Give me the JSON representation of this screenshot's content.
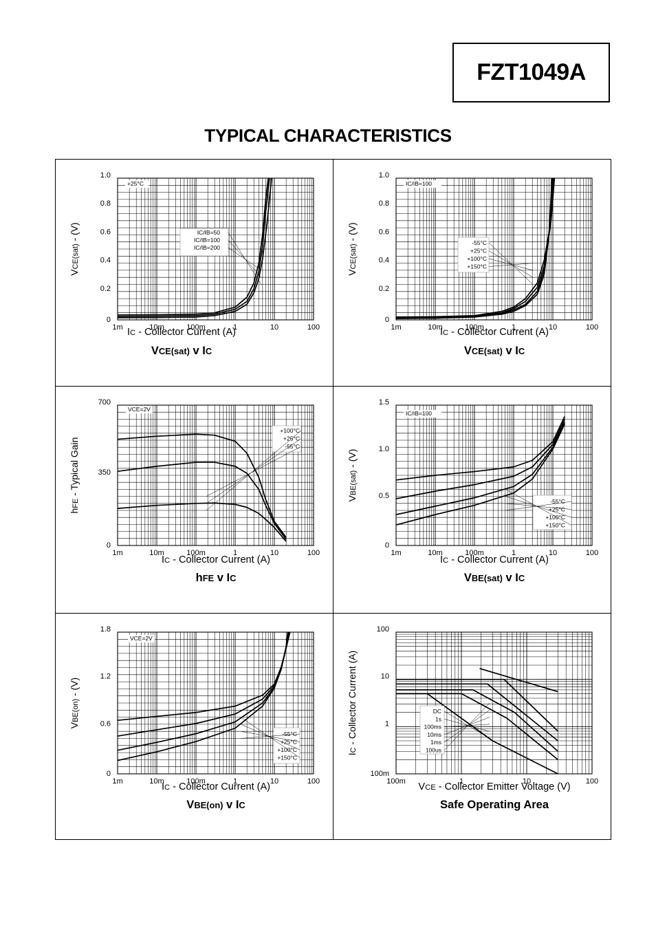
{
  "header": {
    "part_number": "FZT1049A",
    "heading": "TYPICAL CHARACTERISTICS"
  },
  "chart_data": [
    {
      "id": "vcesat",
      "type": "line",
      "title": "VCE(sat) v IC",
      "xlabel": "IC - Collector Current (A)",
      "ylabel": "VCE(sat) - (V)",
      "xscale": "log",
      "xlim": [
        0.001,
        100
      ],
      "xticks": [
        "1m",
        "10m",
        "100m",
        "1",
        "10",
        "100"
      ],
      "yscale": "linear",
      "ylim": [
        0,
        1.0
      ],
      "yticks": [
        "0",
        "0.2",
        "0.4",
        "0.6",
        "0.8",
        "1.0"
      ],
      "grid": true,
      "condition": "+25°C",
      "legend": [
        "IC/IB=50",
        "IC/IB=100",
        "IC/IB=200"
      ],
      "series": [
        {
          "name": "IC/IB=50",
          "x": [
            0.001,
            0.01,
            0.1,
            0.3,
            1,
            2,
            3,
            4,
            5,
            6,
            7
          ],
          "y": [
            0.035,
            0.036,
            0.04,
            0.05,
            0.09,
            0.16,
            0.26,
            0.4,
            0.6,
            0.85,
            1.0
          ]
        },
        {
          "name": "IC/IB=100",
          "x": [
            0.001,
            0.01,
            0.1,
            0.3,
            1,
            2,
            3,
            4,
            5,
            6,
            7.5
          ],
          "y": [
            0.025,
            0.026,
            0.03,
            0.04,
            0.075,
            0.13,
            0.22,
            0.34,
            0.52,
            0.76,
            1.0
          ]
        },
        {
          "name": "IC/IB=200",
          "x": [
            0.001,
            0.01,
            0.1,
            0.3,
            1,
            2,
            3,
            4,
            5,
            6.5,
            8.5
          ],
          "y": [
            0.015,
            0.016,
            0.02,
            0.03,
            0.06,
            0.11,
            0.19,
            0.29,
            0.43,
            0.68,
            1.0
          ]
        }
      ]
    },
    {
      "id": "vcesat_temp",
      "type": "line",
      "title": "VCE(sat) v IC",
      "xlabel": "IC - Collector Current (A)",
      "ylabel": "VCE(sat) - (V)",
      "xscale": "log",
      "xlim": [
        0.001,
        100
      ],
      "xticks": [
        "1m",
        "10m",
        "100m",
        "1",
        "10",
        "100"
      ],
      "yscale": "linear",
      "ylim": [
        0,
        1.0
      ],
      "yticks": [
        "0",
        "0.2",
        "0.4",
        "0.6",
        "0.8",
        "1.0"
      ],
      "grid": true,
      "condition": "IC/IB=100",
      "legend": [
        "-55°C",
        "+25°C",
        "+100°C",
        "+150°C"
      ],
      "series": [
        {
          "name": "-55°C",
          "x": [
            0.001,
            0.01,
            0.1,
            0.5,
            1,
            2,
            4,
            6,
            8,
            9.5
          ],
          "y": [
            0.01,
            0.012,
            0.02,
            0.04,
            0.06,
            0.1,
            0.18,
            0.32,
            0.6,
            1.0
          ]
        },
        {
          "name": "+25°C",
          "x": [
            0.001,
            0.01,
            0.1,
            0.5,
            1,
            2,
            4,
            6,
            8,
            10
          ],
          "y": [
            0.01,
            0.012,
            0.022,
            0.045,
            0.07,
            0.11,
            0.2,
            0.35,
            0.62,
            1.0
          ]
        },
        {
          "name": "+100°C",
          "x": [
            0.001,
            0.01,
            0.1,
            0.5,
            1,
            2,
            4,
            6,
            8.5,
            10.5
          ],
          "y": [
            0.015,
            0.017,
            0.026,
            0.05,
            0.08,
            0.13,
            0.23,
            0.38,
            0.65,
            1.0
          ]
        },
        {
          "name": "+150°C",
          "x": [
            0.001,
            0.01,
            0.1,
            0.5,
            1,
            2,
            4,
            6,
            9,
            11
          ],
          "y": [
            0.02,
            0.022,
            0.03,
            0.06,
            0.09,
            0.15,
            0.26,
            0.42,
            0.7,
            1.0
          ]
        }
      ]
    },
    {
      "id": "hfe",
      "type": "line",
      "title": "hFE v IC",
      "xlabel": "IC - Collector Current (A)",
      "ylabel": "hFE - Typical Gain",
      "xscale": "log",
      "xlim": [
        0.001,
        100
      ],
      "xticks": [
        "1m",
        "10m",
        "100m",
        "1",
        "10",
        "100"
      ],
      "yscale": "linear",
      "ylim": [
        0,
        700
      ],
      "yticks": [
        "0",
        "350",
        "700"
      ],
      "grid": true,
      "condition": "VCE=2V",
      "legend": [
        "+100°C",
        "+25°C",
        "-55°C"
      ],
      "series": [
        {
          "name": "+100°C",
          "x": [
            0.001,
            0.01,
            0.1,
            0.3,
            1,
            2,
            4,
            6,
            10,
            20
          ],
          "y": [
            530,
            545,
            555,
            550,
            520,
            460,
            340,
            230,
            120,
            40
          ]
        },
        {
          "name": "+25°C",
          "x": [
            0.001,
            0.01,
            0.1,
            0.3,
            1,
            2,
            4,
            6,
            10,
            20
          ],
          "y": [
            370,
            395,
            415,
            415,
            395,
            360,
            280,
            200,
            110,
            30
          ]
        },
        {
          "name": "-55°C",
          "x": [
            0.001,
            0.01,
            0.1,
            0.3,
            1,
            2,
            4,
            6,
            10,
            20
          ],
          "y": [
            185,
            200,
            210,
            212,
            205,
            190,
            160,
            130,
            90,
            20
          ]
        }
      ]
    },
    {
      "id": "vbesat",
      "type": "line",
      "title": "VBE(sat) v IC",
      "xlabel": "IC - Collector Current (A)",
      "ylabel": "VBE(sat) - (V)",
      "xscale": "log",
      "xlim": [
        0.001,
        100
      ],
      "xticks": [
        "1m",
        "10m",
        "100m",
        "1",
        "10",
        "100"
      ],
      "yscale": "linear",
      "ylim": [
        0,
        1.5
      ],
      "yticks": [
        "0",
        "0.5",
        "1.0",
        "1.5"
      ],
      "grid": true,
      "condition": "IC/IB=100",
      "legend": [
        "-55°C",
        "+25°C",
        "+100°C",
        "+150°C"
      ],
      "series": [
        {
          "name": "-55°C",
          "x": [
            0.001,
            0.01,
            0.1,
            1,
            3,
            10,
            20
          ],
          "y": [
            0.7,
            0.75,
            0.79,
            0.84,
            0.91,
            1.11,
            1.38
          ]
        },
        {
          "name": "+25°C",
          "x": [
            0.001,
            0.01,
            0.1,
            1,
            3,
            10,
            20
          ],
          "y": [
            0.5,
            0.58,
            0.65,
            0.74,
            0.84,
            1.08,
            1.35
          ]
        },
        {
          "name": "+100°C",
          "x": [
            0.001,
            0.01,
            0.1,
            1,
            3,
            10,
            20
          ],
          "y": [
            0.33,
            0.42,
            0.51,
            0.63,
            0.76,
            1.05,
            1.32
          ]
        },
        {
          "name": "+150°C",
          "x": [
            0.001,
            0.01,
            0.1,
            1,
            3,
            10,
            20
          ],
          "y": [
            0.22,
            0.33,
            0.43,
            0.56,
            0.71,
            1.03,
            1.3
          ]
        }
      ]
    },
    {
      "id": "vbeon",
      "type": "line",
      "title": "VBE(on) v IC",
      "xlabel": "IC - Collector Current (A)",
      "ylabel": "VBE(on) - (V)",
      "xscale": "log",
      "xlim": [
        0.001,
        100
      ],
      "xticks": [
        "1m",
        "10m",
        "100m",
        "1",
        "10",
        "100"
      ],
      "yscale": "linear",
      "ylim": [
        0,
        1.8
      ],
      "yticks": [
        "0",
        "0.6",
        "1.2",
        "1.8"
      ],
      "grid": true,
      "condition": "VCE=2V",
      "legend": [
        "-55°C",
        "+25°C",
        "+100°C",
        "+150°C"
      ],
      "series": [
        {
          "name": "-55°C",
          "x": [
            0.001,
            0.01,
            0.1,
            1,
            5,
            10,
            15,
            20,
            25
          ],
          "y": [
            0.68,
            0.73,
            0.78,
            0.86,
            1.0,
            1.14,
            1.36,
            1.6,
            1.8
          ]
        },
        {
          "name": "+25°C",
          "x": [
            0.001,
            0.01,
            0.1,
            1,
            5,
            10,
            15,
            20,
            24
          ],
          "y": [
            0.48,
            0.56,
            0.64,
            0.76,
            0.95,
            1.12,
            1.35,
            1.6,
            1.8
          ]
        },
        {
          "name": "+100°C",
          "x": [
            0.001,
            0.01,
            0.1,
            1,
            5,
            10,
            15,
            20,
            23
          ],
          "y": [
            0.3,
            0.4,
            0.51,
            0.66,
            0.9,
            1.1,
            1.34,
            1.6,
            1.8
          ]
        },
        {
          "name": "+150°C",
          "x": [
            0.001,
            0.01,
            0.1,
            1,
            5,
            10,
            15,
            20,
            22
          ],
          "y": [
            0.17,
            0.28,
            0.41,
            0.58,
            0.86,
            1.09,
            1.33,
            1.62,
            1.8
          ]
        }
      ]
    },
    {
      "id": "soa",
      "type": "line",
      "title": "Safe Operating Area",
      "xlabel": "VCE - Collector Emitter Voltage (V)",
      "ylabel": "IC - Collector Current (A)",
      "xscale": "log",
      "xlim": [
        0.1,
        100
      ],
      "xticks": [
        "100m",
        "1",
        "10",
        "100"
      ],
      "yscale": "log",
      "ylim": [
        0.1,
        100
      ],
      "yticks": [
        "100m",
        "1",
        "10",
        "100"
      ],
      "grid": true,
      "legend": [
        "DC",
        "1s",
        "100ms",
        "10ms",
        "1ms",
        "100us"
      ],
      "series": [
        {
          "name": "100us",
          "x": [
            1.9,
            30
          ],
          "y": [
            17,
            5.5
          ]
        },
        {
          "name": "1ms",
          "x": [
            0.1,
            4.5,
            30
          ],
          "y": [
            10,
            10,
            0.8
          ]
        },
        {
          "name": "10ms",
          "x": [
            0.1,
            2.5,
            30
          ],
          "y": [
            8,
            8,
            0.5
          ]
        },
        {
          "name": "100ms",
          "x": [
            0.1,
            1.5,
            6.5,
            30
          ],
          "y": [
            6,
            6,
            2,
            0.3
          ]
        },
        {
          "name": "1s",
          "x": [
            0.1,
            1,
            5,
            30
          ],
          "y": [
            5,
            5,
            1.5,
            0.2
          ]
        },
        {
          "name": "DC",
          "x": [
            0.1,
            0.3,
            3,
            30
          ],
          "y": [
            5,
            5,
            0.5,
            0.1
          ]
        }
      ]
    }
  ]
}
